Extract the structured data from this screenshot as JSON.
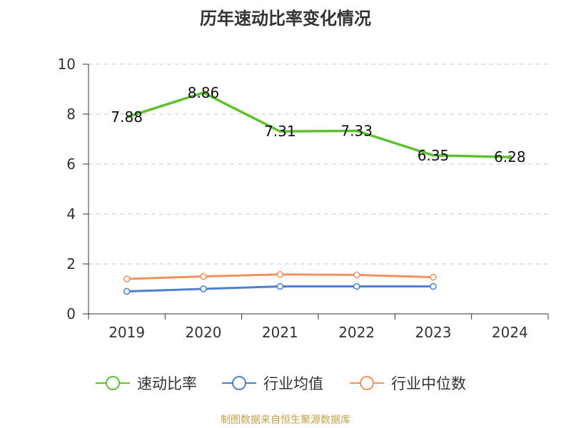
{
  "title": "历年速动比率变化情况",
  "source": "制图数据来自恒生聚源数据库",
  "chart_data": {
    "type": "line",
    "title": "历年速动比率变化情况",
    "categories": [
      "2019",
      "2020",
      "2021",
      "2022",
      "2023",
      "2024"
    ],
    "ylim": [
      0,
      10
    ],
    "yticks": [
      0,
      2,
      4,
      6,
      8,
      10
    ],
    "grid": true,
    "legend_position": "bottom",
    "series": [
      {
        "name": "速动比率",
        "color": "#5ec12f",
        "values": [
          7.88,
          8.86,
          7.31,
          7.33,
          6.35,
          6.28
        ],
        "labels": [
          "7.88",
          "8.86",
          "7.31",
          "7.33",
          "6.35",
          "6.28"
        ]
      },
      {
        "name": "行业均值",
        "color": "#4a80d6",
        "values": [
          0.9,
          1.0,
          1.1,
          1.1,
          1.1,
          null
        ]
      },
      {
        "name": "行业中位数",
        "color": "#f4915e",
        "values": [
          1.4,
          1.5,
          1.58,
          1.56,
          1.47,
          null
        ]
      }
    ]
  }
}
